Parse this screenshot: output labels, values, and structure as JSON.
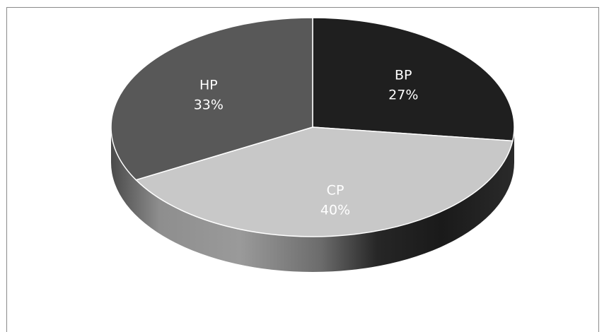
{
  "chart_data": {
    "type": "pie",
    "style": "3d",
    "slices": [
      {
        "label": "BP",
        "value": 27,
        "value_text": "27%",
        "color": "#1f1f1f",
        "label_color": "#ffffff"
      },
      {
        "label": "CP",
        "value": 40,
        "value_text": "40%",
        "color": "#c8c8c8",
        "label_color": "#ffffff"
      },
      {
        "label": "HP",
        "value": 33,
        "value_text": "33%",
        "color": "#585858",
        "label_color": "#ffffff"
      }
    ],
    "start_angle_deg": 0,
    "direction": "clockwise",
    "legend": "none"
  }
}
